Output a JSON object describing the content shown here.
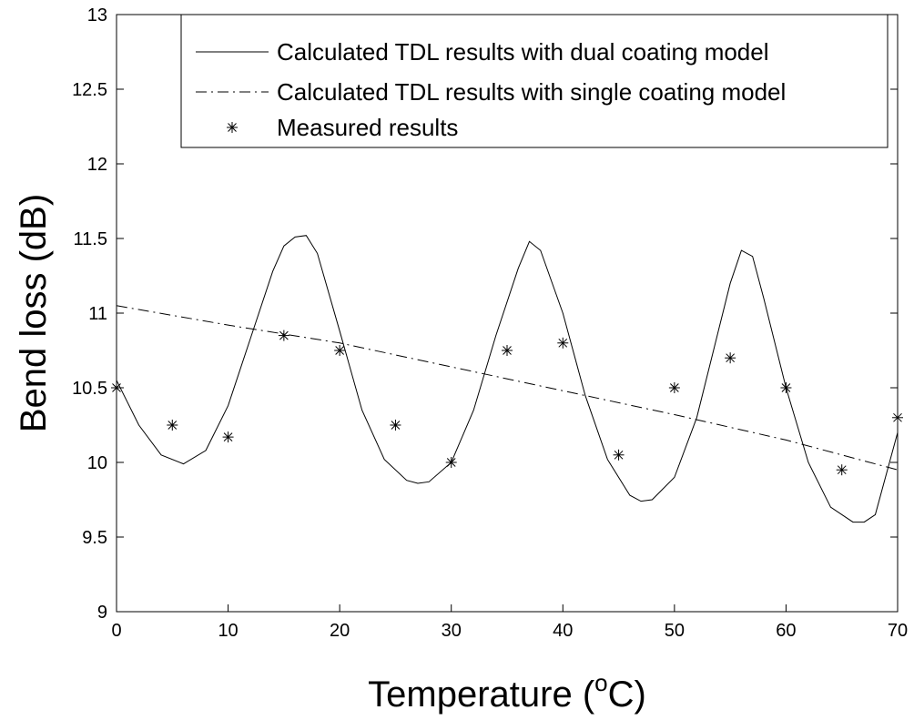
{
  "chart_data": {
    "type": "line",
    "xlabel": "Temperature (",
    "xlabel_sup": "o",
    "xlabel_end": "C)",
    "ylabel": "Bend loss (dB)",
    "xlim": [
      0,
      70
    ],
    "ylim": [
      9,
      13
    ],
    "xticks": [
      0,
      10,
      20,
      30,
      40,
      50,
      60,
      70
    ],
    "yticks": [
      9,
      9.5,
      10,
      10.5,
      11,
      11.5,
      12,
      12.5,
      13
    ],
    "grid": false,
    "legend_position": "top-right",
    "series": [
      {
        "name": "Calculated TDL results with dual coating model",
        "style": "solid",
        "x": [
          0,
          2,
          4,
          6,
          8,
          10,
          12,
          14,
          15,
          16,
          17,
          18,
          20,
          22,
          24,
          26,
          27,
          28,
          30,
          32,
          34,
          36,
          37,
          38,
          40,
          42,
          44,
          46,
          47,
          48,
          50,
          52,
          54,
          55,
          56,
          57,
          58,
          60,
          62,
          64,
          66,
          67,
          68,
          70
        ],
        "y": [
          10.55,
          10.25,
          10.05,
          9.99,
          10.08,
          10.38,
          10.83,
          11.28,
          11.45,
          11.51,
          11.52,
          11.4,
          10.88,
          10.35,
          10.02,
          9.88,
          9.86,
          9.87,
          10.0,
          10.35,
          10.85,
          11.3,
          11.48,
          11.42,
          11.0,
          10.45,
          10.02,
          9.78,
          9.74,
          9.75,
          9.9,
          10.3,
          10.9,
          11.2,
          11.42,
          11.38,
          11.1,
          10.5,
          10.0,
          9.7,
          9.6,
          9.6,
          9.65,
          10.2
        ]
      },
      {
        "name": "Calculated TDL results with single coating model",
        "style": "dashdot",
        "x": [
          0,
          10,
          20,
          30,
          40,
          50,
          60,
          70
        ],
        "y": [
          11.05,
          10.92,
          10.8,
          10.64,
          10.48,
          10.32,
          10.15,
          9.95
        ]
      },
      {
        "name": "Measured results",
        "style": "marker-asterisk",
        "x": [
          0,
          5,
          10,
          15,
          20,
          25,
          30,
          35,
          40,
          45,
          50,
          55,
          60,
          65,
          70
        ],
        "y": [
          10.5,
          10.25,
          10.17,
          10.85,
          10.75,
          10.25,
          10.0,
          10.75,
          10.8,
          10.05,
          10.5,
          10.7,
          10.5,
          9.95,
          10.3
        ]
      }
    ]
  }
}
